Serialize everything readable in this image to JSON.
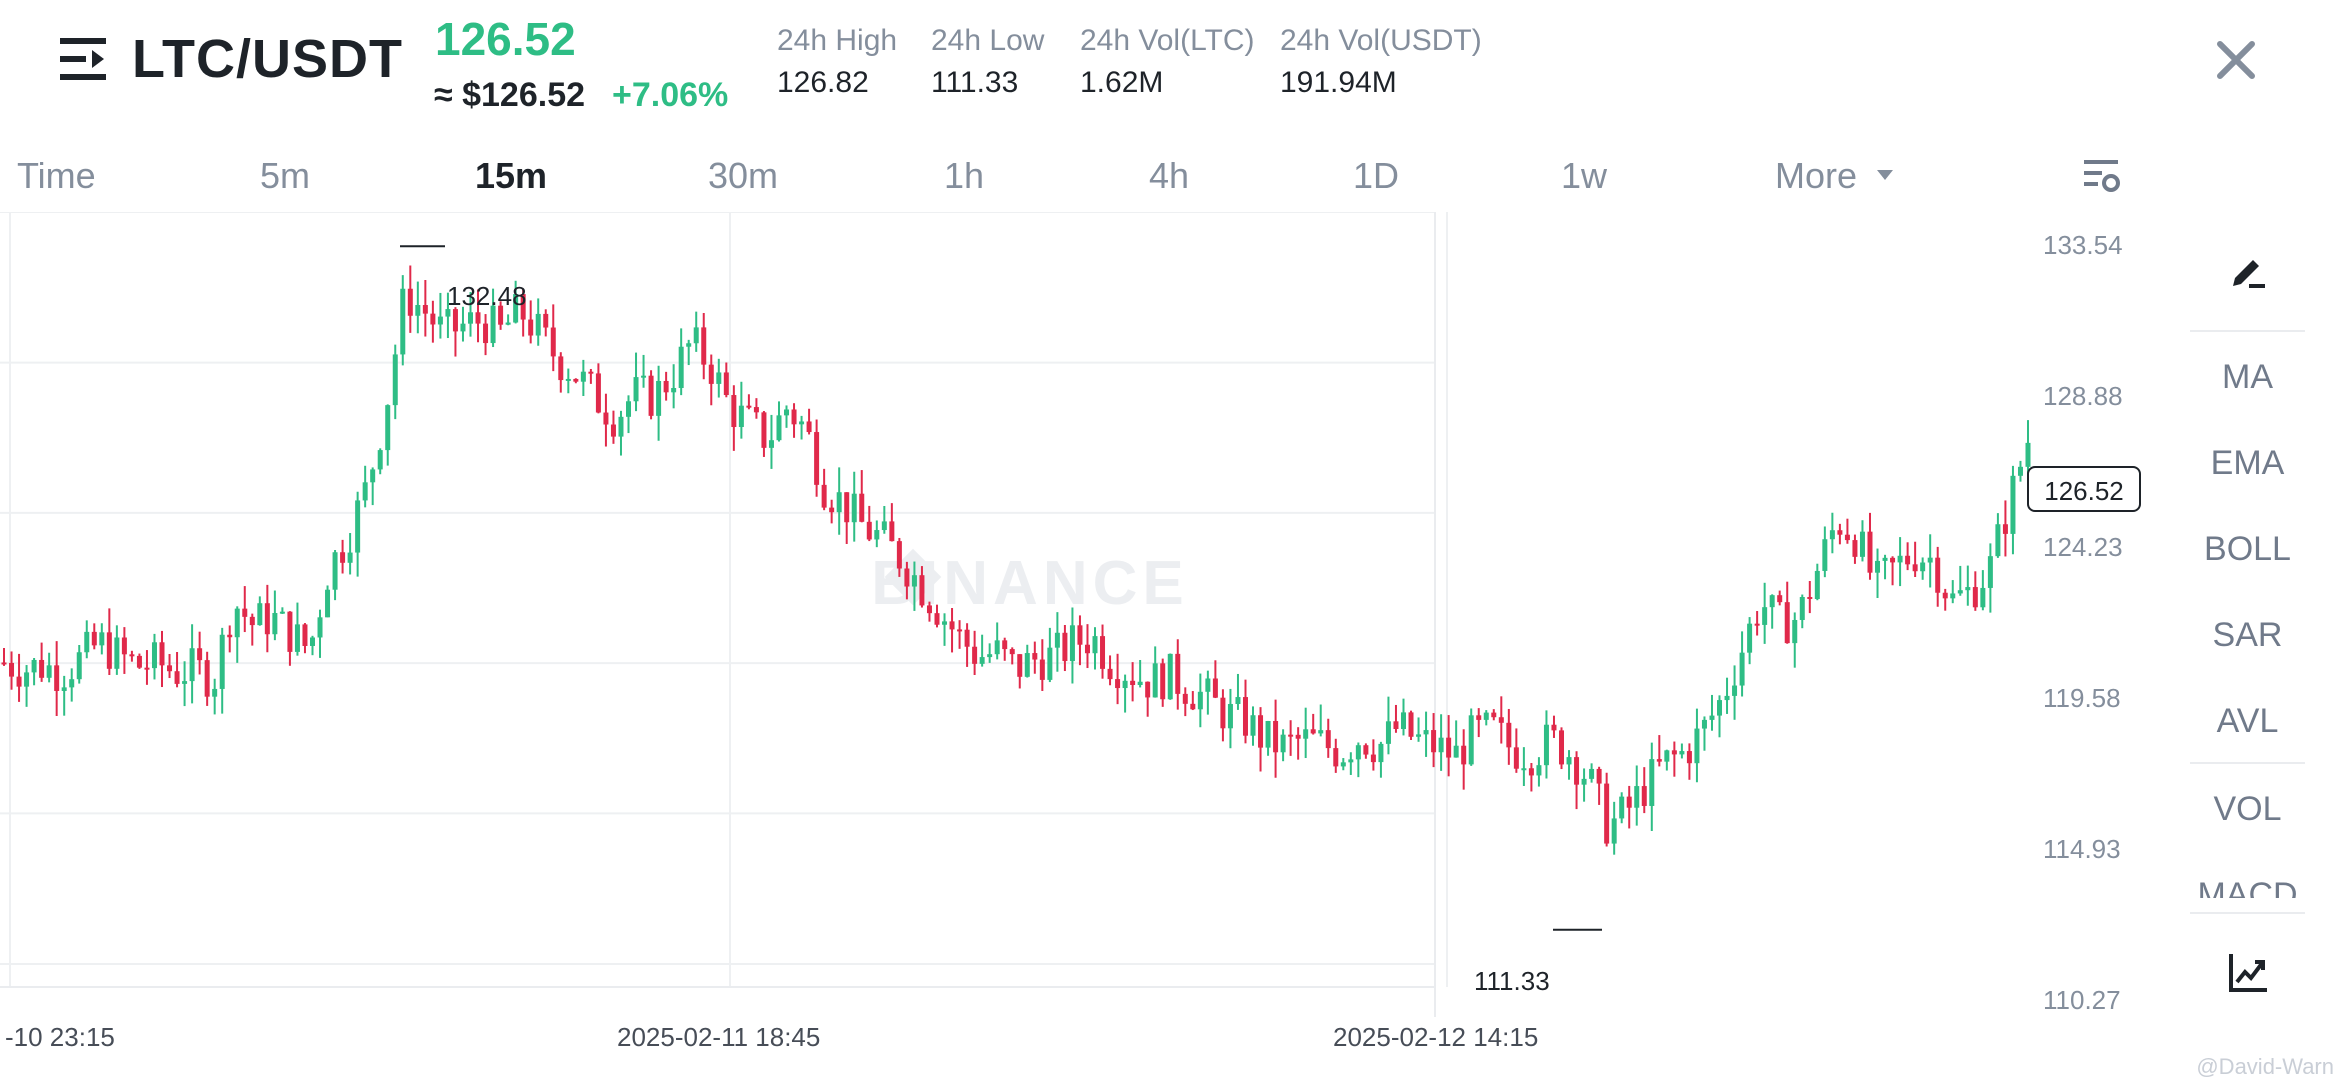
{
  "header": {
    "pair": "LTC/USDT",
    "price": "126.52",
    "approx_price": "≈ $126.52",
    "change": "+7.06%",
    "stats": [
      {
        "label": "24h High",
        "value": "126.82"
      },
      {
        "label": "24h Low",
        "value": "111.33"
      },
      {
        "label": "24h Vol(LTC)",
        "value": "1.62M"
      },
      {
        "label": "24h Vol(USDT)",
        "value": "191.94M"
      }
    ]
  },
  "tabs": [
    {
      "label": "Time",
      "active": false
    },
    {
      "label": "5m",
      "active": false
    },
    {
      "label": "15m",
      "active": true
    },
    {
      "label": "30m",
      "active": false
    },
    {
      "label": "1h",
      "active": false
    },
    {
      "label": "4h",
      "active": false
    },
    {
      "label": "1D",
      "active": false
    },
    {
      "label": "1w",
      "active": false
    }
  ],
  "more_label": "More",
  "chart": {
    "y_ticks": [
      "133.54",
      "128.88",
      "124.23",
      "119.58",
      "114.93",
      "110.27"
    ],
    "x_ticks": [
      "-10 23:15",
      "2025-02-11 18:45",
      "2025-02-12 14:15"
    ],
    "high_marker": "132.48",
    "low_marker": "111.33",
    "current_price_tag": "126.52",
    "watermark": "BINANCE",
    "colors": {
      "up": "#2ebd85",
      "down": "#e0294a",
      "grid": "#eef0f2"
    }
  },
  "chart_data": {
    "type": "candlestick",
    "y_range": [
      110.27,
      133.54
    ],
    "close_path": [
      119.6,
      119.4,
      119.5,
      119.3,
      119.7,
      120.2,
      119.8,
      119.5,
      119.6,
      119.3,
      119.4,
      119.1,
      121.5,
      120.8,
      121.0,
      120.5,
      120.0,
      122.5,
      123.5,
      125.0,
      127.5,
      131.0,
      130.5,
      129.8,
      130.0,
      130.2,
      129.8,
      130.5,
      129.8,
      129.0,
      128.5,
      127.8,
      127.2,
      127.9,
      127.8,
      128.5,
      129.5,
      128.8,
      127.5,
      127.0,
      126.5,
      127.5,
      126.8,
      125.0,
      124.5,
      123.8,
      123.4,
      122.8,
      122.0,
      121.2,
      120.4,
      119.8,
      119.9,
      119.4,
      119.7,
      119.8,
      120.2,
      120.4,
      119.6,
      119.3,
      119.0,
      119.2,
      118.8,
      118.5,
      118.0,
      117.8,
      117.2,
      117.0,
      117.2,
      117.1,
      116.8,
      117.3,
      117.0,
      117.6,
      117.2,
      117.0,
      116.7,
      117.4,
      117.5,
      116.9,
      116.8,
      117.2,
      116.8,
      116.0,
      114.5,
      115.0,
      115.8,
      116.5,
      116.8,
      117.5,
      118.5,
      120.0,
      121.5,
      120.8,
      121.0,
      122.5,
      124.0,
      123.5,
      122.0,
      122.5,
      123.0,
      122.8,
      121.5,
      121.8,
      122.5,
      124.5,
      126.5
    ]
  },
  "right_toolbar": {
    "items": [
      "MA",
      "EMA",
      "BOLL",
      "SAR",
      "AVL",
      "VOL",
      "MACD"
    ]
  },
  "footer_watermark": "@David-Warn"
}
